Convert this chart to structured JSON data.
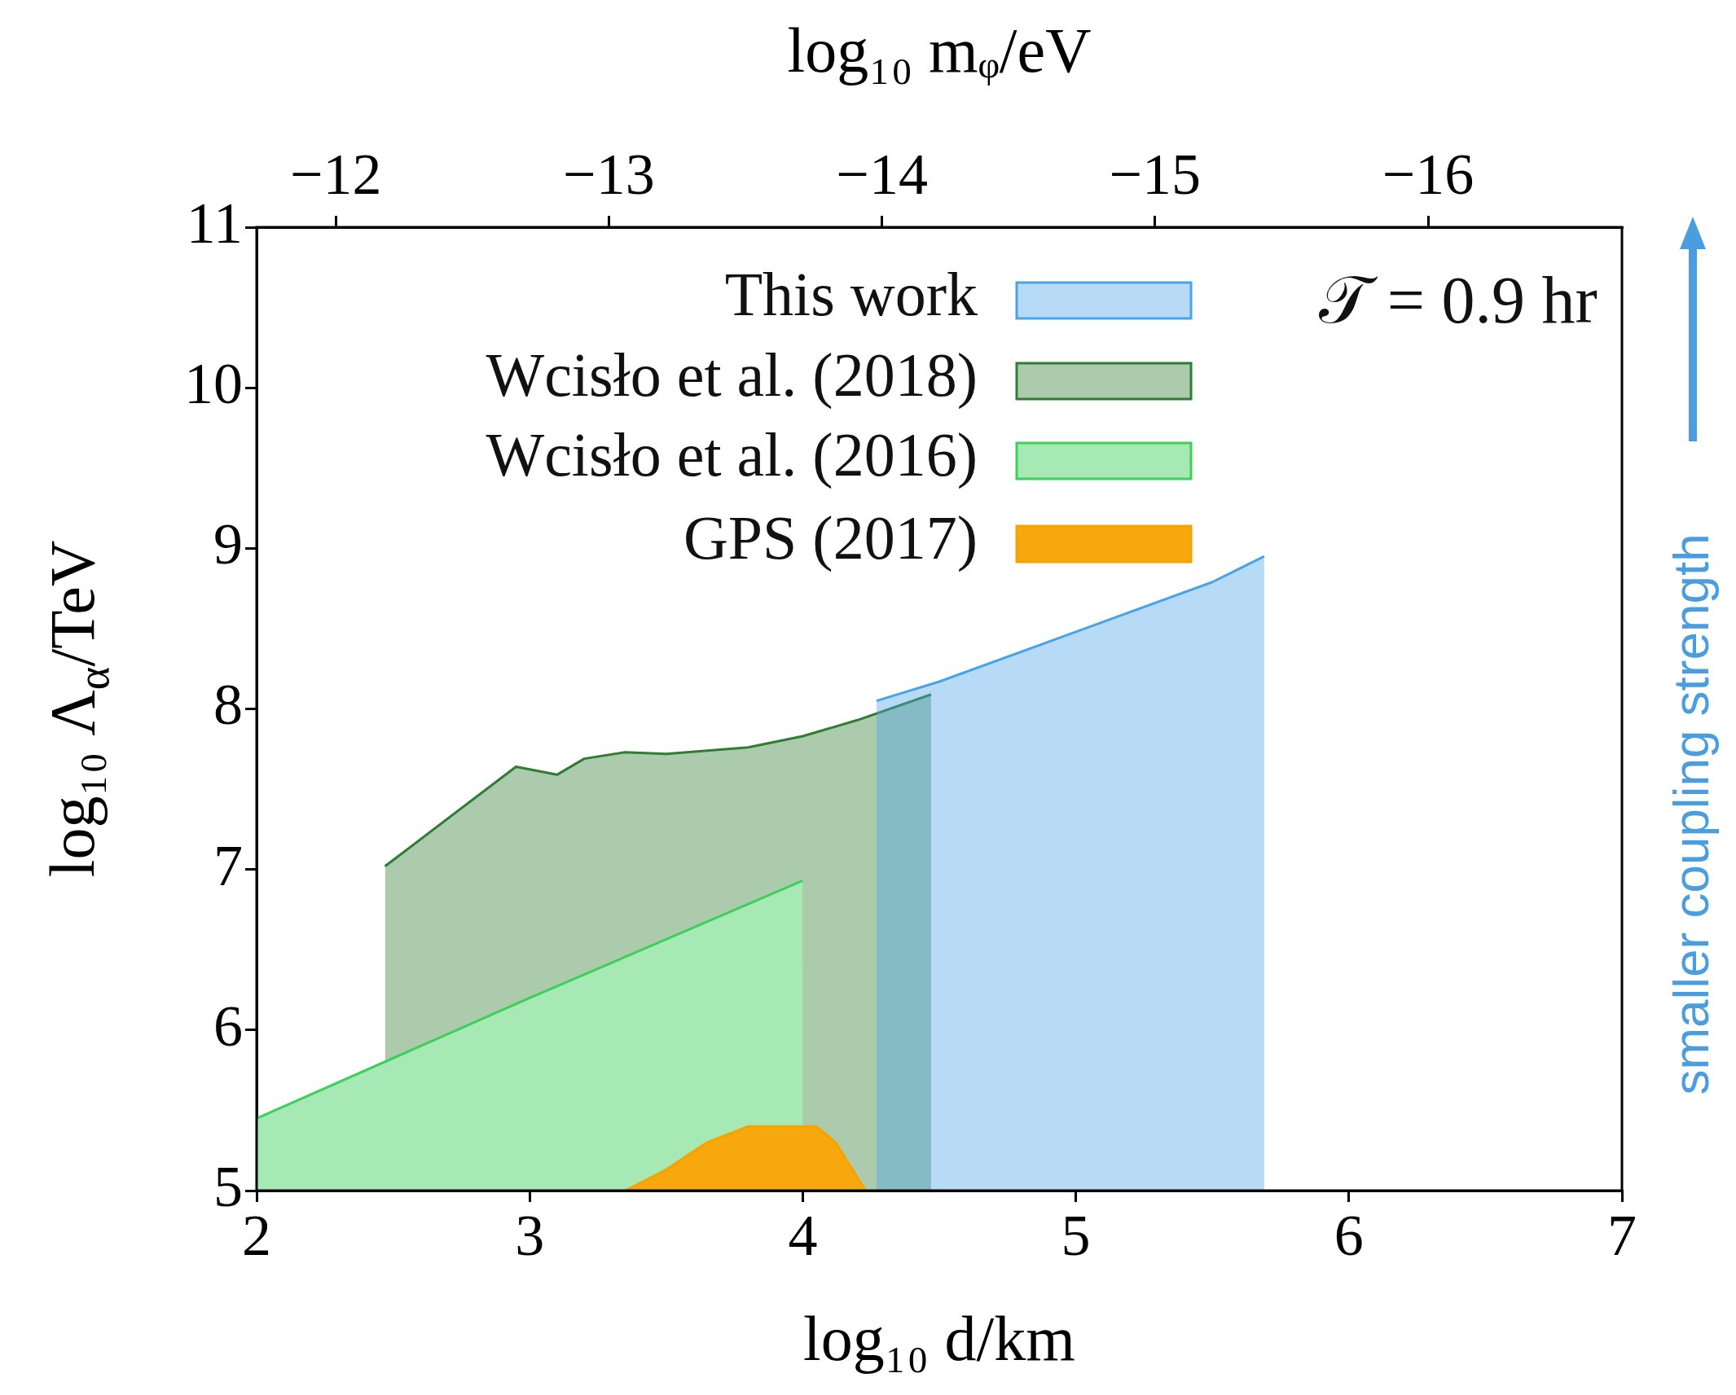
{
  "chart_data": {
    "type": "area",
    "xlabel": "log₁₀ d/km",
    "ylabel": "log₁₀ Λ$_{α}$/TeV",
    "x2label": "log₁₀ mᵩ/eV",
    "xlim": [
      2,
      7
    ],
    "xticks": [
      2,
      3,
      4,
      5,
      6,
      7
    ],
    "ylim": [
      5,
      11
    ],
    "yticks": [
      5,
      6,
      7,
      8,
      9,
      10,
      11
    ],
    "x2lim": [
      -11.71,
      -16.71
    ],
    "x2ticks": [
      -12,
      -13,
      -14,
      -15,
      -16
    ],
    "legend": "top",
    "annotations": [
      "𝒯 = 0.9 hr",
      "smaller coupling strength"
    ],
    "series": [
      {
        "name": "This work",
        "color": "#4aa3e8",
        "x": [
          4.27,
          4.5,
          5.0,
          5.5,
          5.69
        ],
        "values": [
          8.05,
          8.17,
          8.48,
          8.79,
          8.95
        ]
      },
      {
        "name": "Wcisło et al. (2018)",
        "color": "#2f7d32",
        "x": [
          2.47,
          2.95,
          3.1,
          3.2,
          3.35,
          3.5,
          3.8,
          4.0,
          4.2,
          4.47
        ],
        "values": [
          7.02,
          7.64,
          7.59,
          7.69,
          7.73,
          7.72,
          7.76,
          7.83,
          7.93,
          8.09
        ]
      },
      {
        "name": "Wcisło et al. (2016)",
        "color": "#3ccf5a",
        "x": [
          2.0,
          3.0,
          4.0
        ],
        "values": [
          5.45,
          6.2,
          6.93
        ]
      },
      {
        "name": "GPS (2017)",
        "color": "#f5a300",
        "x": [
          3.35,
          3.5,
          3.65,
          3.8,
          4.05,
          4.12,
          4.23
        ],
        "values": [
          5.0,
          5.13,
          5.3,
          5.4,
          5.4,
          5.3,
          5.0
        ]
      }
    ]
  }
}
